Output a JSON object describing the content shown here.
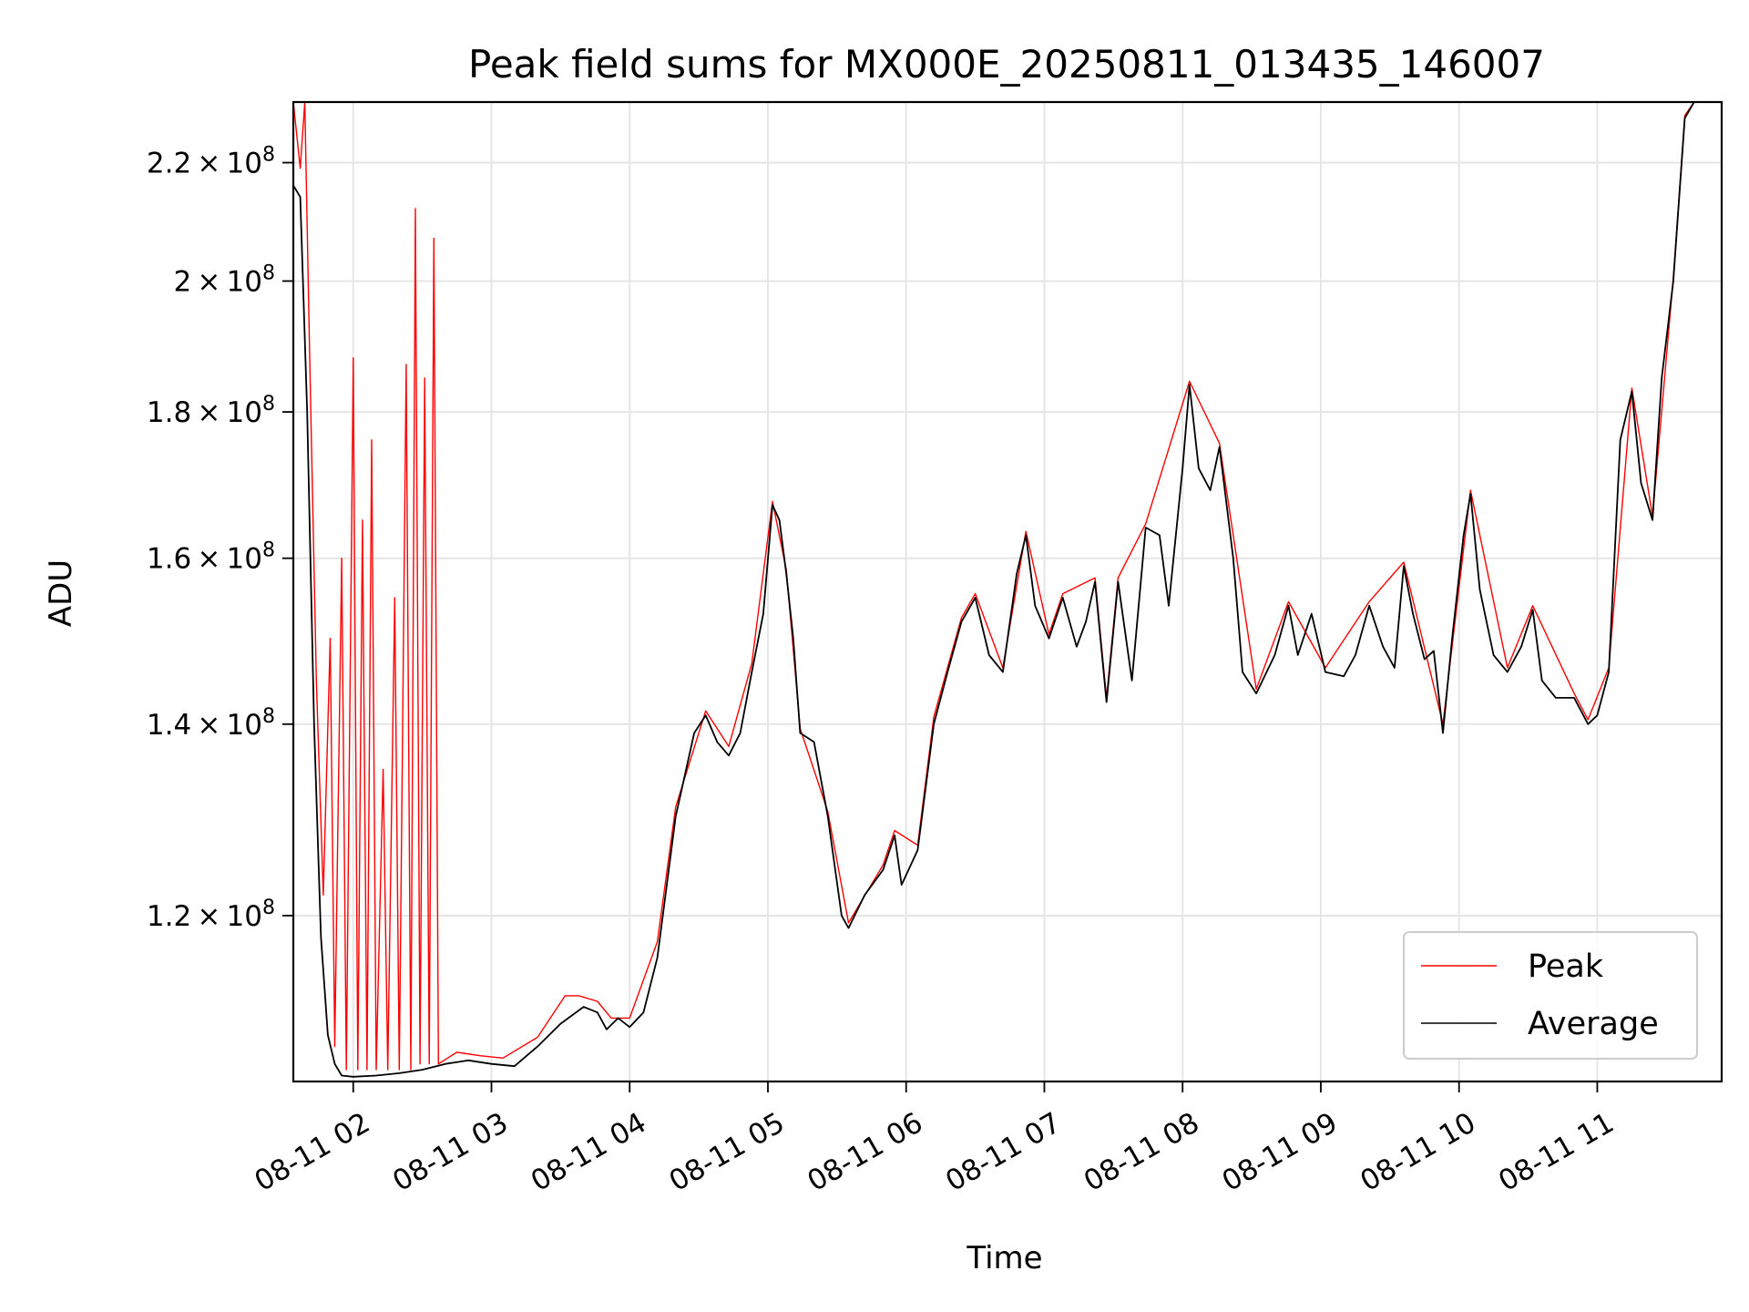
{
  "chart_data": {
    "type": "line",
    "title": "Peak field sums for MX000E_20250811_013435_146007",
    "xlabel": "Time",
    "ylabel": "ADU",
    "y_scale": "log",
    "grid": true,
    "legend_position": "lower-right",
    "x_range": [
      "2025-08-11 01:34",
      "2025-08-11 11:54"
    ],
    "ylim": [
      105000000,
      231000000
    ],
    "x_ticks": [
      {
        "value": "2025-08-11 02:00",
        "label": "08-11 02"
      },
      {
        "value": "2025-08-11 03:00",
        "label": "08-11 03"
      },
      {
        "value": "2025-08-11 04:00",
        "label": "08-11 04"
      },
      {
        "value": "2025-08-11 05:00",
        "label": "08-11 05"
      },
      {
        "value": "2025-08-11 06:00",
        "label": "08-11 06"
      },
      {
        "value": "2025-08-11 07:00",
        "label": "08-11 07"
      },
      {
        "value": "2025-08-11 08:00",
        "label": "08-11 08"
      },
      {
        "value": "2025-08-11 09:00",
        "label": "08-11 09"
      },
      {
        "value": "2025-08-11 10:00",
        "label": "08-11 10"
      },
      {
        "value": "2025-08-11 11:00",
        "label": "08-11 11"
      }
    ],
    "y_ticks": [
      {
        "value": 120000000,
        "mantissa": "1.2",
        "exponent": "8"
      },
      {
        "value": 140000000,
        "mantissa": "1.4",
        "exponent": "8"
      },
      {
        "value": 160000000,
        "mantissa": "1.6",
        "exponent": "8"
      },
      {
        "value": 180000000,
        "mantissa": "1.8",
        "exponent": "8"
      },
      {
        "value": 200000000,
        "mantissa": "2",
        "exponent": "8"
      },
      {
        "value": 220000000,
        "mantissa": "2.2",
        "exponent": "8"
      }
    ],
    "tick_times_symbol": "×",
    "tick_base": "10",
    "series": [
      {
        "name": "Average",
        "color": "#000000",
        "points": [
          [
            "2025-08-11 01:34",
            216000000
          ],
          [
            "2025-08-11 01:37",
            214000000
          ],
          [
            "2025-08-11 01:40",
            180000000
          ],
          [
            "2025-08-11 01:43",
            140000000
          ],
          [
            "2025-08-11 01:46",
            118000000
          ],
          [
            "2025-08-11 01:49",
            109000000
          ],
          [
            "2025-08-11 01:52",
            106500000
          ],
          [
            "2025-08-11 01:55",
            105500000
          ],
          [
            "2025-08-11 02:00",
            105400000
          ],
          [
            "2025-08-11 02:10",
            105500000
          ],
          [
            "2025-08-11 02:20",
            105700000
          ],
          [
            "2025-08-11 02:30",
            106000000
          ],
          [
            "2025-08-11 02:40",
            106500000
          ],
          [
            "2025-08-11 02:50",
            106800000
          ],
          [
            "2025-08-11 03:00",
            106500000
          ],
          [
            "2025-08-11 03:10",
            106300000
          ],
          [
            "2025-08-11 03:20",
            108000000
          ],
          [
            "2025-08-11 03:30",
            110000000
          ],
          [
            "2025-08-11 03:40",
            111500000
          ],
          [
            "2025-08-11 03:46",
            111000000
          ],
          [
            "2025-08-11 03:50",
            109500000
          ],
          [
            "2025-08-11 03:55",
            110500000
          ],
          [
            "2025-08-11 04:00",
            109700000
          ],
          [
            "2025-08-11 04:06",
            111000000
          ],
          [
            "2025-08-11 04:12",
            116000000
          ],
          [
            "2025-08-11 04:20",
            130000000
          ],
          [
            "2025-08-11 04:28",
            139000000
          ],
          [
            "2025-08-11 04:33",
            141000000
          ],
          [
            "2025-08-11 04:38",
            138000000
          ],
          [
            "2025-08-11 04:43",
            136500000
          ],
          [
            "2025-08-11 04:48",
            139000000
          ],
          [
            "2025-08-11 04:53",
            146000000
          ],
          [
            "2025-08-11 04:58",
            153000000
          ],
          [
            "2025-08-11 05:02",
            167000000
          ],
          [
            "2025-08-11 05:05",
            165000000
          ],
          [
            "2025-08-11 05:08",
            158000000
          ],
          [
            "2025-08-11 05:11",
            150000000
          ],
          [
            "2025-08-11 05:14",
            139000000
          ],
          [
            "2025-08-11 05:20",
            138000000
          ],
          [
            "2025-08-11 05:26",
            130000000
          ],
          [
            "2025-08-11 05:32",
            120000000
          ],
          [
            "2025-08-11 05:35",
            118800000
          ],
          [
            "2025-08-11 05:42",
            122000000
          ],
          [
            "2025-08-11 05:50",
            124500000
          ],
          [
            "2025-08-11 05:55",
            128000000
          ],
          [
            "2025-08-11 05:58",
            123000000
          ],
          [
            "2025-08-11 06:05",
            126500000
          ],
          [
            "2025-08-11 06:12",
            140000000
          ],
          [
            "2025-08-11 06:18",
            146000000
          ],
          [
            "2025-08-11 06:24",
            152000000
          ],
          [
            "2025-08-11 06:30",
            155000000
          ],
          [
            "2025-08-11 06:36",
            148000000
          ],
          [
            "2025-08-11 06:42",
            146000000
          ],
          [
            "2025-08-11 06:48",
            158000000
          ],
          [
            "2025-08-11 06:52",
            163000000
          ],
          [
            "2025-08-11 06:56",
            154000000
          ],
          [
            "2025-08-11 07:02",
            150000000
          ],
          [
            "2025-08-11 07:08",
            155000000
          ],
          [
            "2025-08-11 07:14",
            149000000
          ],
          [
            "2025-08-11 07:18",
            152000000
          ],
          [
            "2025-08-11 07:22",
            157000000
          ],
          [
            "2025-08-11 07:27",
            142500000
          ],
          [
            "2025-08-11 07:32",
            157000000
          ],
          [
            "2025-08-11 07:38",
            145000000
          ],
          [
            "2025-08-11 07:44",
            164000000
          ],
          [
            "2025-08-11 07:50",
            163000000
          ],
          [
            "2025-08-11 07:54",
            154000000
          ],
          [
            "2025-08-11 08:00",
            172000000
          ],
          [
            "2025-08-11 08:03",
            184000000
          ],
          [
            "2025-08-11 08:07",
            172000000
          ],
          [
            "2025-08-11 08:12",
            169000000
          ],
          [
            "2025-08-11 08:16",
            175000000
          ],
          [
            "2025-08-11 08:22",
            160000000
          ],
          [
            "2025-08-11 08:26",
            146000000
          ],
          [
            "2025-08-11 08:32",
            143500000
          ],
          [
            "2025-08-11 08:40",
            148000000
          ],
          [
            "2025-08-11 08:46",
            154000000
          ],
          [
            "2025-08-11 08:50",
            148000000
          ],
          [
            "2025-08-11 08:56",
            153000000
          ],
          [
            "2025-08-11 09:02",
            146000000
          ],
          [
            "2025-08-11 09:10",
            145500000
          ],
          [
            "2025-08-11 09:15",
            148000000
          ],
          [
            "2025-08-11 09:21",
            154000000
          ],
          [
            "2025-08-11 09:27",
            149000000
          ],
          [
            "2025-08-11 09:32",
            146500000
          ],
          [
            "2025-08-11 09:36",
            159000000
          ],
          [
            "2025-08-11 09:40",
            153000000
          ],
          [
            "2025-08-11 09:45",
            147500000
          ],
          [
            "2025-08-11 09:49",
            148500000
          ],
          [
            "2025-08-11 09:53",
            139000000
          ],
          [
            "2025-08-11 09:57",
            150000000
          ],
          [
            "2025-08-11 10:02",
            163000000
          ],
          [
            "2025-08-11 10:05",
            168500000
          ],
          [
            "2025-08-11 10:09",
            156000000
          ],
          [
            "2025-08-11 10:15",
            148000000
          ],
          [
            "2025-08-11 10:21",
            146000000
          ],
          [
            "2025-08-11 10:27",
            149000000
          ],
          [
            "2025-08-11 10:32",
            153500000
          ],
          [
            "2025-08-11 10:36",
            145000000
          ],
          [
            "2025-08-11 10:42",
            143000000
          ],
          [
            "2025-08-11 10:50",
            143000000
          ],
          [
            "2025-08-11 10:56",
            140000000
          ],
          [
            "2025-08-11 11:00",
            141000000
          ],
          [
            "2025-08-11 11:05",
            146000000
          ],
          [
            "2025-08-11 11:10",
            176000000
          ],
          [
            "2025-08-11 11:15",
            183000000
          ],
          [
            "2025-08-11 11:19",
            170000000
          ],
          [
            "2025-08-11 11:24",
            165000000
          ],
          [
            "2025-08-11 11:28",
            185000000
          ],
          [
            "2025-08-11 11:33",
            200000000
          ],
          [
            "2025-08-11 11:38",
            228000000
          ],
          [
            "2025-08-11 11:42",
            231000000
          ],
          [
            "2025-08-11 11:54",
            231000000
          ]
        ]
      },
      {
        "name": "Peak",
        "color": "#ff0000",
        "points": [
          [
            "2025-08-11 01:34",
            231000000
          ],
          [
            "2025-08-11 01:37",
            219000000
          ],
          [
            "2025-08-11 01:39",
            231000000
          ],
          [
            "2025-08-11 01:41",
            190000000
          ],
          [
            "2025-08-11 01:44",
            145000000
          ],
          [
            "2025-08-11 01:47",
            122000000
          ],
          [
            "2025-08-11 01:50",
            150000000
          ],
          [
            "2025-08-11 01:52",
            108000000
          ],
          [
            "2025-08-11 01:55",
            160000000
          ],
          [
            "2025-08-11 01:57",
            106000000
          ],
          [
            "2025-08-11 02:00",
            188000000
          ],
          [
            "2025-08-11 02:02",
            106000000
          ],
          [
            "2025-08-11 02:04",
            165000000
          ],
          [
            "2025-08-11 02:06",
            106000000
          ],
          [
            "2025-08-11 02:08",
            176000000
          ],
          [
            "2025-08-11 02:10",
            106000000
          ],
          [
            "2025-08-11 02:13",
            135000000
          ],
          [
            "2025-08-11 02:15",
            106000000
          ],
          [
            "2025-08-11 02:18",
            155000000
          ],
          [
            "2025-08-11 02:20",
            106000000
          ],
          [
            "2025-08-11 02:23",
            187000000
          ],
          [
            "2025-08-11 02:25",
            106000000
          ],
          [
            "2025-08-11 02:27",
            212000000
          ],
          [
            "2025-08-11 02:29",
            106500000
          ],
          [
            "2025-08-11 02:31",
            185000000
          ],
          [
            "2025-08-11 02:33",
            106500000
          ],
          [
            "2025-08-11 02:35",
            207000000
          ],
          [
            "2025-08-11 02:37",
            106500000
          ],
          [
            "2025-08-11 02:45",
            107500000
          ],
          [
            "2025-08-11 02:55",
            107200000
          ],
          [
            "2025-08-11 03:05",
            107000000
          ],
          [
            "2025-08-11 03:20",
            108800000
          ],
          [
            "2025-08-11 03:32",
            112500000
          ],
          [
            "2025-08-11 03:38",
            112500000
          ],
          [
            "2025-08-11 03:46",
            112000000
          ],
          [
            "2025-08-11 03:52",
            110500000
          ],
          [
            "2025-08-11 04:00",
            110500000
          ],
          [
            "2025-08-11 04:12",
            117500000
          ],
          [
            "2025-08-11 04:20",
            131000000
          ],
          [
            "2025-08-11 04:33",
            141500000
          ],
          [
            "2025-08-11 04:43",
            137500000
          ],
          [
            "2025-08-11 04:53",
            147000000
          ],
          [
            "2025-08-11 05:02",
            167500000
          ],
          [
            "2025-08-11 05:08",
            158500000
          ],
          [
            "2025-08-11 05:14",
            139500000
          ],
          [
            "2025-08-11 05:26",
            130500000
          ],
          [
            "2025-08-11 05:35",
            119300000
          ],
          [
            "2025-08-11 05:50",
            125000000
          ],
          [
            "2025-08-11 05:55",
            128500000
          ],
          [
            "2025-08-11 06:05",
            127000000
          ],
          [
            "2025-08-11 06:12",
            140800000
          ],
          [
            "2025-08-11 06:24",
            152500000
          ],
          [
            "2025-08-11 06:30",
            155500000
          ],
          [
            "2025-08-11 06:42",
            146500000
          ],
          [
            "2025-08-11 06:52",
            163500000
          ],
          [
            "2025-08-11 07:02",
            150500000
          ],
          [
            "2025-08-11 07:08",
            155500000
          ],
          [
            "2025-08-11 07:22",
            157500000
          ],
          [
            "2025-08-11 07:27",
            143000000
          ],
          [
            "2025-08-11 07:32",
            157500000
          ],
          [
            "2025-08-11 07:44",
            164500000
          ],
          [
            "2025-08-11 08:03",
            184500000
          ],
          [
            "2025-08-11 08:16",
            175500000
          ],
          [
            "2025-08-11 08:32",
            144000000
          ],
          [
            "2025-08-11 08:46",
            154500000
          ],
          [
            "2025-08-11 09:02",
            146500000
          ],
          [
            "2025-08-11 09:21",
            154500000
          ],
          [
            "2025-08-11 09:36",
            159500000
          ],
          [
            "2025-08-11 09:53",
            140000000
          ],
          [
            "2025-08-11 10:05",
            169000000
          ],
          [
            "2025-08-11 10:21",
            146500000
          ],
          [
            "2025-08-11 10:32",
            154000000
          ],
          [
            "2025-08-11 10:50",
            143500000
          ],
          [
            "2025-08-11 10:56",
            140500000
          ],
          [
            "2025-08-11 11:05",
            146500000
          ],
          [
            "2025-08-11 11:15",
            183500000
          ],
          [
            "2025-08-11 11:24",
            165500000
          ],
          [
            "2025-08-11 11:33",
            200500000
          ],
          [
            "2025-08-11 11:38",
            228500000
          ],
          [
            "2025-08-11 11:42",
            231000000
          ],
          [
            "2025-08-11 11:54",
            231000000
          ]
        ]
      }
    ],
    "legend": [
      {
        "label": "Peak",
        "color": "#ff0000"
      },
      {
        "label": "Average",
        "color": "#000000"
      }
    ]
  }
}
